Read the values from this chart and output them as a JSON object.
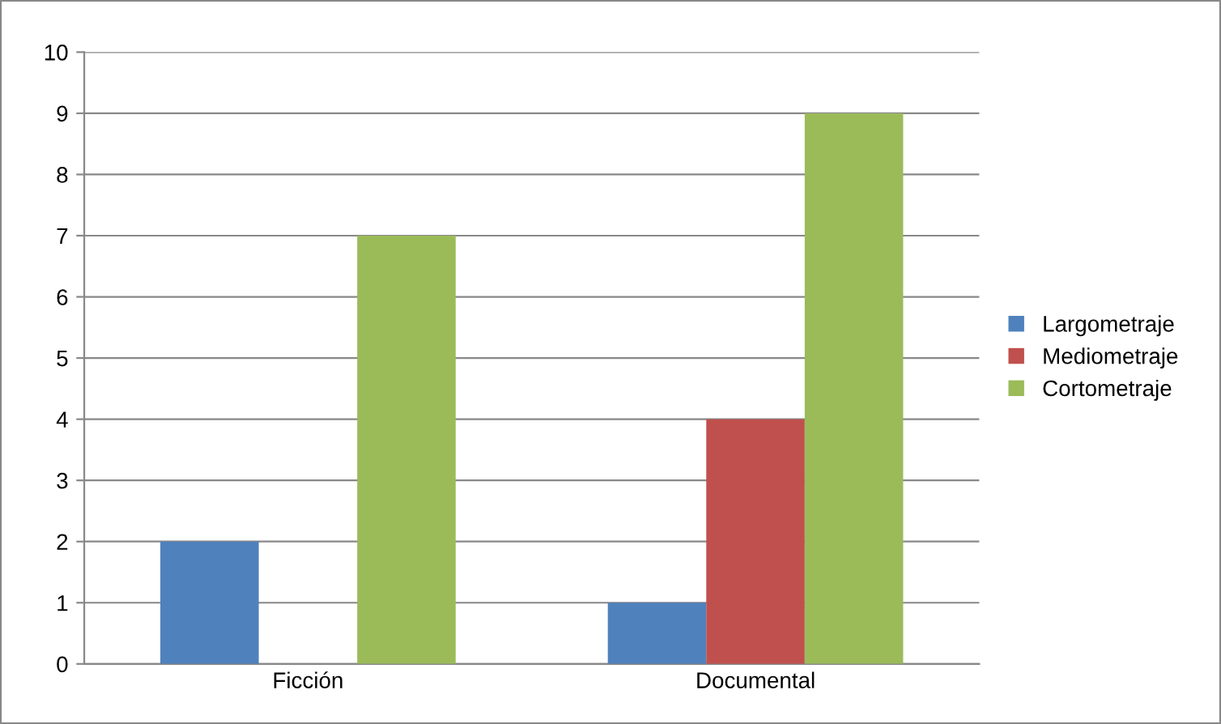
{
  "chart_data": {
    "type": "bar",
    "categories": [
      "Ficción",
      "Documental"
    ],
    "series": [
      {
        "name": "Largometraje",
        "color": "#4f81bd",
        "values": [
          2,
          1
        ]
      },
      {
        "name": "Mediometraje",
        "color": "#c0504d",
        "values": [
          0,
          4
        ]
      },
      {
        "name": "Cortometraje",
        "color": "#9bbb59",
        "values": [
          7,
          9
        ]
      }
    ],
    "ylim": [
      0,
      10
    ],
    "yticks": [
      0,
      1,
      2,
      3,
      4,
      5,
      6,
      7,
      8,
      9,
      10
    ],
    "grid": "y",
    "legend": "right"
  }
}
